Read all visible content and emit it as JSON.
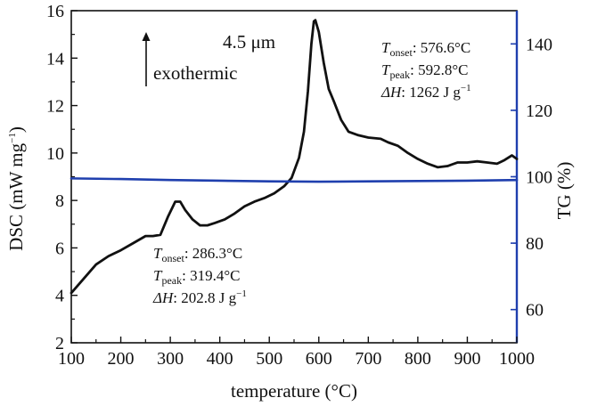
{
  "chart_data": {
    "type": "line",
    "title": "",
    "xlabel": "temperature (°C)",
    "ylabel_left": "DSC (mW mg",
    "ylabel_left_exp": "−1",
    "ylabel_left_close": ")",
    "ylabel_right": "TG (%)",
    "xlim": [
      100,
      1000
    ],
    "ylim_left": [
      2,
      16
    ],
    "ylim_right": [
      50,
      150
    ],
    "x_ticks": [
      100,
      200,
      300,
      400,
      500,
      600,
      700,
      800,
      900,
      1000
    ],
    "y_left_ticks": [
      2,
      4,
      6,
      8,
      10,
      12,
      14,
      16
    ],
    "y_right_ticks": [
      60,
      80,
      100,
      120,
      140
    ],
    "colors": {
      "dsc": "#111111",
      "tg": "#1f3fae",
      "right_axis": "#1f3fae",
      "left_axis": "#111111"
    },
    "series": [
      {
        "name": "DSC",
        "axis": "left",
        "x": [
          100,
          125,
          150,
          175,
          200,
          225,
          250,
          265,
          280,
          295,
          310,
          320,
          330,
          345,
          360,
          375,
          390,
          410,
          430,
          450,
          470,
          490,
          510,
          530,
          545,
          560,
          570,
          578,
          585,
          590,
          593,
          600,
          610,
          620,
          630,
          645,
          660,
          680,
          700,
          725,
          740,
          760,
          780,
          800,
          820,
          840,
          860,
          880,
          900,
          920,
          940,
          960,
          975,
          990,
          1000
        ],
        "values": [
          4.1,
          4.7,
          5.3,
          5.65,
          5.9,
          6.2,
          6.5,
          6.5,
          6.55,
          7.3,
          7.95,
          7.95,
          7.6,
          7.2,
          6.95,
          6.95,
          7.05,
          7.2,
          7.45,
          7.75,
          7.95,
          8.1,
          8.3,
          8.6,
          8.95,
          9.8,
          10.9,
          12.6,
          14.6,
          15.55,
          15.6,
          15.1,
          13.8,
          12.7,
          12.2,
          11.4,
          10.9,
          10.75,
          10.65,
          10.6,
          10.45,
          10.3,
          10.0,
          9.75,
          9.55,
          9.4,
          9.45,
          9.6,
          9.6,
          9.65,
          9.6,
          9.55,
          9.7,
          9.9,
          9.75
        ]
      },
      {
        "name": "TG",
        "axis": "right",
        "x": [
          100,
          200,
          300,
          400,
          500,
          600,
          700,
          800,
          900,
          1000
        ],
        "values": [
          99.5,
          99.3,
          99.0,
          98.8,
          98.6,
          98.5,
          98.6,
          98.7,
          98.8,
          99.0
        ]
      }
    ]
  },
  "annotations": {
    "size_label": "4.5 μm",
    "arrow_label": "exothermic",
    "high_peak": {
      "onset_sym": "T",
      "onset_sub": "onset",
      "onset_val": ": 576.6°C",
      "peak_sym": "T",
      "peak_sub": "peak",
      "peak_val": ": 592.8°C",
      "dh_sym": "ΔH",
      "dh_val": ": 1262 J g",
      "dh_exp": "−1"
    },
    "low_peak": {
      "onset_sym": "T",
      "onset_sub": "onset",
      "onset_val": ": 286.3°C",
      "peak_sym": "T",
      "peak_sub": "peak",
      "peak_val": ": 319.4°C",
      "dh_sym": "ΔH",
      "dh_val": ": 202.8 J g",
      "dh_exp": "−1"
    }
  }
}
